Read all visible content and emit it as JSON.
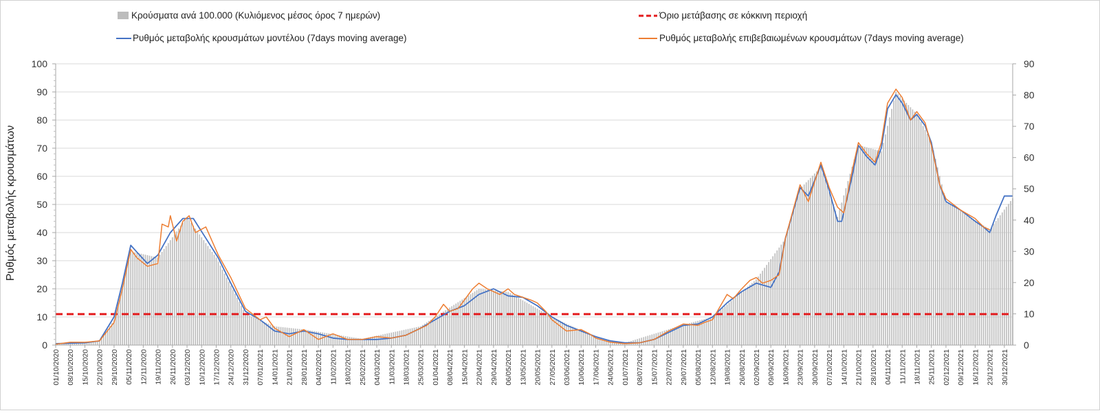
{
  "chart_data": {
    "type": "line",
    "legend": {
      "placement": "top",
      "entries": [
        {
          "key": "bars",
          "label": "Κρούσματα ανά 100.000 (Κυλιόμενος μέσος όρος 7 ημερών)",
          "color": "#bdbdbd",
          "symbol": "box"
        },
        {
          "key": "threshold",
          "label": "Όριο μετάβασης σε κόκκινη περιοχή",
          "color": "#e31a1c",
          "symbol": "dash"
        },
        {
          "key": "model",
          "label": "Ρυθμός μεταβολής κρουσμάτων μοντέλου (7days moving average)",
          "color": "#4472c4",
          "symbol": "line"
        },
        {
          "key": "confirmed",
          "label": "Ρυθμός μεταβολής επιβεβαιωμένων κρουσμάτων (7days moving average)",
          "color": "#ed7d31",
          "symbol": "line"
        }
      ]
    },
    "ylabel": "Ρυθμός μεταβολής κρουσμάτων",
    "ylim": [
      0,
      100
    ],
    "y_ticks": [
      0,
      10,
      20,
      30,
      40,
      50,
      60,
      70,
      80,
      90,
      100
    ],
    "y2lim": [
      0,
      90
    ],
    "y2_ticks": [
      0,
      10,
      20,
      30,
      40,
      50,
      60,
      70,
      80,
      90
    ],
    "threshold": 11,
    "grid": true,
    "x_range": [
      "01/10/2020",
      "03/01/2022"
    ],
    "x_ticks": [
      "01/10/2020",
      "08/10/2020",
      "15/10/2020",
      "22/10/2020",
      "29/10/2020",
      "05/11/2020",
      "12/11/2020",
      "19/11/2020",
      "26/11/2020",
      "03/12/2020",
      "10/12/2020",
      "17/12/2020",
      "24/12/2020",
      "31/12/2020",
      "07/01/2021",
      "14/01/2021",
      "21/01/2021",
      "28/01/2021",
      "04/02/2021",
      "11/02/2021",
      "18/02/2021",
      "25/02/2021",
      "04/03/2021",
      "11/03/2021",
      "18/03/2021",
      "25/03/2021",
      "01/04/2021",
      "08/04/2021",
      "15/04/2021",
      "22/04/2021",
      "29/04/2021",
      "06/05/2021",
      "13/05/2021",
      "20/05/2021",
      "27/05/2021",
      "03/06/2021",
      "10/06/2021",
      "17/06/2021",
      "24/06/2021",
      "01/07/2021",
      "08/07/2021",
      "15/07/2021",
      "22/07/2021",
      "29/07/2021",
      "05/08/2021",
      "12/08/2021",
      "19/08/2021",
      "26/08/2021",
      "02/09/2021",
      "09/09/2021",
      "16/09/2021",
      "23/09/2021",
      "30/09/2021",
      "07/10/2021",
      "14/10/2021",
      "21/10/2021",
      "28/10/2021",
      "04/11/2021",
      "11/11/2021",
      "18/11/2021",
      "25/11/2021",
      "02/12/2021",
      "09/12/2021",
      "16/12/2021",
      "23/12/2021",
      "30/12/2021"
    ],
    "series": [
      {
        "key": "model",
        "color": "#4472c4",
        "points": [
          [
            "01/10/2020",
            0.5
          ],
          [
            "15/10/2020",
            0.8
          ],
          [
            "22/10/2020",
            1.5
          ],
          [
            "29/10/2020",
            10
          ],
          [
            "02/11/2020",
            22
          ],
          [
            "06/11/2020",
            35.5
          ],
          [
            "09/11/2020",
            33
          ],
          [
            "14/11/2020",
            29
          ],
          [
            "19/11/2020",
            32
          ],
          [
            "25/11/2020",
            40
          ],
          [
            "01/12/2020",
            45
          ],
          [
            "06/12/2020",
            45
          ],
          [
            "12/12/2020",
            38
          ],
          [
            "18/12/2020",
            31
          ],
          [
            "24/12/2020",
            22
          ],
          [
            "31/12/2020",
            12
          ],
          [
            "07/01/2021",
            9
          ],
          [
            "14/01/2021",
            5
          ],
          [
            "21/01/2021",
            4
          ],
          [
            "28/01/2021",
            5
          ],
          [
            "04/02/2021",
            4
          ],
          [
            "11/02/2021",
            2.5
          ],
          [
            "18/02/2021",
            2
          ],
          [
            "25/02/2021",
            2
          ],
          [
            "04/03/2021",
            2
          ],
          [
            "11/03/2021",
            2.5
          ],
          [
            "18/03/2021",
            3.5
          ],
          [
            "25/03/2021",
            6
          ],
          [
            "01/04/2021",
            9
          ],
          [
            "08/04/2021",
            12
          ],
          [
            "15/04/2021",
            14
          ],
          [
            "22/04/2021",
            18
          ],
          [
            "29/04/2021",
            20
          ],
          [
            "06/05/2021",
            17.5
          ],
          [
            "13/05/2021",
            17
          ],
          [
            "20/05/2021",
            14
          ],
          [
            "27/05/2021",
            10
          ],
          [
            "03/06/2021",
            7
          ],
          [
            "10/06/2021",
            5
          ],
          [
            "17/06/2021",
            3
          ],
          [
            "24/06/2021",
            1.5
          ],
          [
            "01/07/2021",
            0.8
          ],
          [
            "08/07/2021",
            0.8
          ],
          [
            "15/07/2021",
            2
          ],
          [
            "22/07/2021",
            4.5
          ],
          [
            "29/07/2021",
            7
          ],
          [
            "05/08/2021",
            7.5
          ],
          [
            "12/08/2021",
            10
          ],
          [
            "19/08/2021",
            15
          ],
          [
            "26/08/2021",
            19
          ],
          [
            "02/09/2021",
            22
          ],
          [
            "09/09/2021",
            20.5
          ],
          [
            "13/09/2021",
            26
          ],
          [
            "16/09/2021",
            38
          ],
          [
            "23/09/2021",
            56
          ],
          [
            "27/09/2021",
            53
          ],
          [
            "03/10/2021",
            64
          ],
          [
            "07/10/2021",
            55
          ],
          [
            "11/10/2021",
            44
          ],
          [
            "13/10/2021",
            44
          ],
          [
            "18/10/2021",
            60
          ],
          [
            "21/10/2021",
            71
          ],
          [
            "25/10/2021",
            67
          ],
          [
            "29/10/2021",
            64
          ],
          [
            "01/11/2021",
            70
          ],
          [
            "04/11/2021",
            84
          ],
          [
            "08/11/2021",
            89
          ],
          [
            "11/11/2021",
            86
          ],
          [
            "15/11/2021",
            80
          ],
          [
            "18/11/2021",
            82
          ],
          [
            "22/11/2021",
            78
          ],
          [
            "25/11/2021",
            72
          ],
          [
            "29/11/2021",
            57
          ],
          [
            "02/12/2021",
            51
          ],
          [
            "09/12/2021",
            48
          ],
          [
            "16/12/2021",
            44
          ],
          [
            "20/12/2021",
            42
          ],
          [
            "23/12/2021",
            40
          ],
          [
            "26/12/2021",
            46
          ],
          [
            "30/12/2021",
            53
          ],
          [
            "03/01/2022",
            53
          ]
        ]
      },
      {
        "key": "confirmed",
        "color": "#ed7d31",
        "points": [
          [
            "01/10/2020",
            0.3
          ],
          [
            "08/10/2020",
            1
          ],
          [
            "15/10/2020",
            1
          ],
          [
            "22/10/2020",
            1.5
          ],
          [
            "29/10/2020",
            8
          ],
          [
            "02/11/2020",
            20
          ],
          [
            "06/11/2020",
            34
          ],
          [
            "09/11/2020",
            31
          ],
          [
            "14/11/2020",
            28
          ],
          [
            "19/11/2020",
            29
          ],
          [
            "21/11/2020",
            43
          ],
          [
            "24/11/2020",
            42
          ],
          [
            "25/11/2020",
            46
          ],
          [
            "28/11/2020",
            37
          ],
          [
            "01/12/2020",
            44
          ],
          [
            "04/12/2020",
            46
          ],
          [
            "07/12/2020",
            40
          ],
          [
            "12/12/2020",
            42
          ],
          [
            "18/12/2020",
            32
          ],
          [
            "24/12/2020",
            24
          ],
          [
            "31/12/2020",
            13
          ],
          [
            "07/01/2021",
            9
          ],
          [
            "10/01/2021",
            10
          ],
          [
            "14/01/2021",
            6
          ],
          [
            "21/01/2021",
            3
          ],
          [
            "28/01/2021",
            5.5
          ],
          [
            "04/02/2021",
            2
          ],
          [
            "11/02/2021",
            4
          ],
          [
            "18/02/2021",
            2
          ],
          [
            "25/02/2021",
            2
          ],
          [
            "04/03/2021",
            3
          ],
          [
            "11/03/2021",
            2.5
          ],
          [
            "18/03/2021",
            3.5
          ],
          [
            "25/03/2021",
            6
          ],
          [
            "28/03/2021",
            7
          ],
          [
            "01/04/2021",
            10
          ],
          [
            "05/04/2021",
            14.5
          ],
          [
            "08/04/2021",
            12
          ],
          [
            "12/04/2021",
            13
          ],
          [
            "15/04/2021",
            16
          ],
          [
            "19/04/2021",
            20
          ],
          [
            "22/04/2021",
            22
          ],
          [
            "26/04/2021",
            20
          ],
          [
            "29/04/2021",
            19
          ],
          [
            "02/05/2021",
            18
          ],
          [
            "06/05/2021",
            20
          ],
          [
            "09/05/2021",
            18
          ],
          [
            "13/05/2021",
            17
          ],
          [
            "17/05/2021",
            16
          ],
          [
            "20/05/2021",
            15
          ],
          [
            "24/05/2021",
            12
          ],
          [
            "27/05/2021",
            9
          ],
          [
            "03/06/2021",
            5
          ],
          [
            "10/06/2021",
            5.5
          ],
          [
            "14/06/2021",
            4
          ],
          [
            "17/06/2021",
            2.5
          ],
          [
            "24/06/2021",
            1
          ],
          [
            "01/07/2021",
            0.5
          ],
          [
            "08/07/2021",
            0.8
          ],
          [
            "15/07/2021",
            2
          ],
          [
            "22/07/2021",
            5
          ],
          [
            "29/07/2021",
            7.5
          ],
          [
            "05/08/2021",
            7
          ],
          [
            "08/08/2021",
            8
          ],
          [
            "12/08/2021",
            9
          ],
          [
            "19/08/2021",
            18
          ],
          [
            "22/08/2021",
            16.5
          ],
          [
            "26/08/2021",
            20
          ],
          [
            "30/08/2021",
            23
          ],
          [
            "02/09/2021",
            24
          ],
          [
            "05/09/2021",
            22
          ],
          [
            "09/09/2021",
            23
          ],
          [
            "13/09/2021",
            25
          ],
          [
            "16/09/2021",
            38
          ],
          [
            "23/09/2021",
            57
          ],
          [
            "27/09/2021",
            51
          ],
          [
            "03/10/2021",
            65
          ],
          [
            "07/10/2021",
            56
          ],
          [
            "11/10/2021",
            49
          ],
          [
            "14/10/2021",
            47
          ],
          [
            "18/10/2021",
            62
          ],
          [
            "21/10/2021",
            72
          ],
          [
            "25/10/2021",
            68
          ],
          [
            "29/10/2021",
            65
          ],
          [
            "01/11/2021",
            72
          ],
          [
            "04/11/2021",
            86
          ],
          [
            "08/11/2021",
            91
          ],
          [
            "11/11/2021",
            88
          ],
          [
            "15/11/2021",
            80
          ],
          [
            "18/11/2021",
            83
          ],
          [
            "22/11/2021",
            79
          ],
          [
            "25/11/2021",
            71
          ],
          [
            "29/11/2021",
            57
          ],
          [
            "02/12/2021",
            52
          ],
          [
            "09/12/2021",
            48
          ],
          [
            "16/12/2021",
            45
          ],
          [
            "20/12/2021",
            42
          ],
          [
            "23/12/2021",
            41
          ]
        ]
      }
    ],
    "bars": {
      "key": "bars",
      "axis": "secondary",
      "color": "#bdbdbd",
      "profile": [
        [
          "01/10/2020",
          0.5
        ],
        [
          "22/10/2020",
          1.2
        ],
        [
          "29/10/2020",
          8
        ],
        [
          "06/11/2020",
          30
        ],
        [
          "19/11/2020",
          28
        ],
        [
          "03/12/2020",
          41
        ],
        [
          "17/12/2020",
          28
        ],
        [
          "31/12/2020",
          10
        ],
        [
          "14/01/2021",
          6
        ],
        [
          "28/01/2021",
          5
        ],
        [
          "25/02/2021",
          2
        ],
        [
          "25/03/2021",
          6
        ],
        [
          "22/04/2021",
          18
        ],
        [
          "06/05/2021",
          17
        ],
        [
          "27/05/2021",
          9
        ],
        [
          "17/06/2021",
          2.5
        ],
        [
          "01/07/2021",
          0.7
        ],
        [
          "29/07/2021",
          6.5
        ],
        [
          "12/08/2021",
          9
        ],
        [
          "02/09/2021",
          21
        ],
        [
          "16/09/2021",
          34
        ],
        [
          "23/09/2021",
          50
        ],
        [
          "03/10/2021",
          57
        ],
        [
          "11/10/2021",
          41
        ],
        [
          "21/10/2021",
          64
        ],
        [
          "01/11/2021",
          62
        ],
        [
          "08/11/2021",
          81
        ],
        [
          "18/11/2021",
          74
        ],
        [
          "25/11/2021",
          65
        ],
        [
          "02/12/2021",
          46
        ],
        [
          "16/12/2021",
          40
        ],
        [
          "23/12/2021",
          37
        ],
        [
          "03/01/2022",
          47
        ]
      ]
    }
  }
}
